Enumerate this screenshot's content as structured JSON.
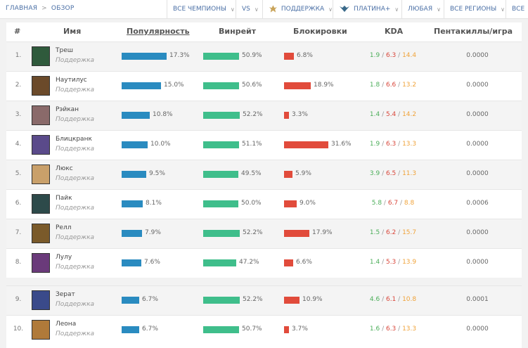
{
  "breadcrumb": {
    "home": "ГЛАВНАЯ",
    "current": "ОБЗОР"
  },
  "filters": [
    {
      "label": "ВСЕ ЧЕМПИОНЫ",
      "icon": ""
    },
    {
      "label": "VS",
      "icon": ""
    },
    {
      "label": "ПОДДЕРЖКА",
      "icon": "support-role-icon"
    },
    {
      "label": "ПЛАТИНА+",
      "icon": "platinum-rank-icon"
    },
    {
      "label": "ЛЮБАЯ",
      "icon": ""
    },
    {
      "label": "ВСЕ РЕГИОНЫ",
      "icon": ""
    },
    {
      "label": "ВСЕ",
      "icon": ""
    }
  ],
  "columns": {
    "num": "#",
    "name": "Имя",
    "popularity": "Популярность",
    "winrate": "Винрейт",
    "banrate": "Блокировки",
    "kda": "KDA",
    "pentas": "Пентакиллы/игра"
  },
  "accent": {
    "popularity": "#2a8bc0",
    "winrate": "#3fbe8b",
    "banrate": "#e14b3b"
  },
  "rows": [
    {
      "num": "1.",
      "name": "Треш",
      "role": "Поддержка",
      "popularity": 17.3,
      "popularity_text": "17.3%",
      "winrate": 50.9,
      "winrate_text": "50.9%",
      "banrate": 6.8,
      "banrate_text": "6.8%",
      "kills": "1.9",
      "deaths": "6.3",
      "assists": "14.4",
      "pentas": "0.0000",
      "avatar_color": "#2f5a3c"
    },
    {
      "num": "2.",
      "name": "Наутилус",
      "role": "Поддержка",
      "popularity": 15.0,
      "popularity_text": "15.0%",
      "winrate": 50.6,
      "winrate_text": "50.6%",
      "banrate": 18.9,
      "banrate_text": "18.9%",
      "kills": "1.8",
      "deaths": "6.6",
      "assists": "13.2",
      "pentas": "0.0000",
      "avatar_color": "#6b4a2a"
    },
    {
      "num": "3.",
      "name": "Рэйкан",
      "role": "Поддержка",
      "popularity": 10.8,
      "popularity_text": "10.8%",
      "winrate": 52.2,
      "winrate_text": "52.2%",
      "banrate": 3.3,
      "banrate_text": "3.3%",
      "kills": "1.4",
      "deaths": "5.4",
      "assists": "14.2",
      "pentas": "0.0000",
      "avatar_color": "#8a6a6a"
    },
    {
      "num": "4.",
      "name": "Блицкранк",
      "role": "Поддержка",
      "popularity": 10.0,
      "popularity_text": "10.0%",
      "winrate": 51.1,
      "winrate_text": "51.1%",
      "banrate": 31.6,
      "banrate_text": "31.6%",
      "kills": "1.9",
      "deaths": "6.3",
      "assists": "13.3",
      "pentas": "0.0000",
      "avatar_color": "#5a4a8a"
    },
    {
      "num": "5.",
      "name": "Люкс",
      "role": "Поддержка",
      "popularity": 9.5,
      "popularity_text": "9.5%",
      "winrate": 49.5,
      "winrate_text": "49.5%",
      "banrate": 5.9,
      "banrate_text": "5.9%",
      "kills": "3.9",
      "deaths": "6.5",
      "assists": "11.3",
      "pentas": "0.0000",
      "avatar_color": "#c9a06a"
    },
    {
      "num": "6.",
      "name": "Пайк",
      "role": "Поддержка",
      "popularity": 8.1,
      "popularity_text": "8.1%",
      "winrate": 50.0,
      "winrate_text": "50.0%",
      "banrate": 9.0,
      "banrate_text": "9.0%",
      "kills": "5.8",
      "deaths": "6.7",
      "assists": "8.8",
      "pentas": "0.0006",
      "avatar_color": "#2d4a4a"
    },
    {
      "num": "7.",
      "name": "Релл",
      "role": "Поддержка",
      "popularity": 7.9,
      "popularity_text": "7.9%",
      "winrate": 52.2,
      "winrate_text": "52.2%",
      "banrate": 17.9,
      "banrate_text": "17.9%",
      "kills": "1.5",
      "deaths": "6.2",
      "assists": "15.7",
      "pentas": "0.0000",
      "avatar_color": "#7a5a2a"
    },
    {
      "num": "8.",
      "name": "Лулу",
      "role": "Поддержка",
      "popularity": 7.6,
      "popularity_text": "7.6%",
      "winrate": 47.2,
      "winrate_text": "47.2%",
      "banrate": 6.6,
      "banrate_text": "6.6%",
      "kills": "1.4",
      "deaths": "5.3",
      "assists": "13.9",
      "pentas": "0.0000",
      "avatar_color": "#6a3a7a"
    },
    {
      "num": "9.",
      "name": "Зерат",
      "role": "Поддержка",
      "popularity": 6.7,
      "popularity_text": "6.7%",
      "winrate": 52.2,
      "winrate_text": "52.2%",
      "banrate": 10.9,
      "banrate_text": "10.9%",
      "kills": "4.6",
      "deaths": "6.1",
      "assists": "10.8",
      "pentas": "0.0001",
      "avatar_color": "#3a4a8a"
    },
    {
      "num": "10.",
      "name": "Леона",
      "role": "Поддержка",
      "popularity": 6.7,
      "popularity_text": "6.7%",
      "winrate": 50.7,
      "winrate_text": "50.7%",
      "banrate": 3.7,
      "banrate_text": "3.7%",
      "kills": "1.6",
      "deaths": "6.3",
      "assists": "13.3",
      "pentas": "0.0000",
      "avatar_color": "#b07a3a"
    }
  ]
}
